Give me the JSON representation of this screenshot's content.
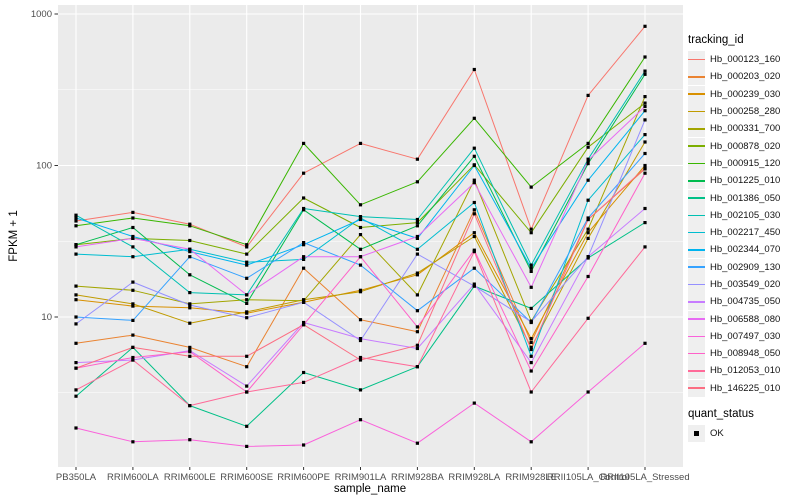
{
  "colors": {
    "background": "#FFFFFF",
    "panel_bg": "#EBEBEB",
    "grid": "#FFFFFF",
    "tick_text": "#4D4D4D",
    "tick_mark": "#333333",
    "axis_title": "#000000",
    "legend_key_bg": "#EFEFEF",
    "point": "#000000"
  },
  "chart_data": {
    "type": "line",
    "title": "",
    "xlabel": "sample_name",
    "ylabel": "FPKM + 1",
    "y_scale": "log10",
    "ylim": [
      1,
      1000
    ],
    "grid": true,
    "legend_position": "right",
    "y_ticks": [
      {
        "value": 10,
        "label": "10"
      },
      {
        "value": 100,
        "label": "100"
      },
      {
        "value": 1000,
        "label": "1000"
      }
    ],
    "y_minor_ticks": [
      3.1623,
      31.623,
      316.23
    ],
    "categories": [
      "PB350LA",
      "RRIM600LA",
      "RRIM600LE",
      "RRIM600SE",
      "RRIM600PE",
      "RRIM901LA",
      "RRIM928BA",
      "RRIM928LA",
      "RRIM928LE",
      "RRII105LA_Control",
      "RRII105LA_Stressed"
    ],
    "point_marker": {
      "shape": "square",
      "color": "#000000"
    },
    "legend": {
      "color_title": "tracking_id",
      "shape_title": "quant_status",
      "shape_items": [
        "OK"
      ]
    },
    "series": [
      {
        "name": "Hb_000123_160",
        "color": "#F8766D",
        "values": [
          43,
          49,
          41,
          29,
          89,
          140,
          110,
          430,
          38,
          290,
          830
        ]
      },
      {
        "name": "Hb_000203_020",
        "color": "#EA8331",
        "values": [
          6.7,
          7.6,
          6.3,
          4.7,
          21,
          9.6,
          8.0,
          51,
          6.8,
          44,
          95
        ]
      },
      {
        "name": "Hb_000239_030",
        "color": "#D89000",
        "values": [
          13,
          11.8,
          11.5,
          10.6,
          12.5,
          15,
          19,
          36,
          7.2,
          36,
          100
        ]
      },
      {
        "name": "Hb_000258_280",
        "color": "#C09B00",
        "values": [
          14,
          12.2,
          9.1,
          10.8,
          13,
          14.7,
          19.5,
          34,
          6.3,
          33,
          143
        ]
      },
      {
        "name": "Hb_000331_700",
        "color": "#A3A500",
        "values": [
          16,
          15,
          12.2,
          13,
          12.8,
          35,
          14,
          80,
          9.4,
          38,
          285
        ]
      },
      {
        "name": "Hb_000878_020",
        "color": "#7CAE00",
        "values": [
          30,
          33,
          32,
          26,
          61,
          39,
          42,
          101,
          36,
          132,
          258
        ]
      },
      {
        "name": "Hb_000915_120",
        "color": "#39B600",
        "values": [
          40,
          45,
          40,
          30,
          140,
          55,
          78,
          205,
          72,
          140,
          520
        ]
      },
      {
        "name": "Hb_001225_010",
        "color": "#00BB4E",
        "values": [
          30,
          39,
          19,
          12.3,
          51,
          28,
          40,
          115,
          20,
          103,
          400
        ]
      },
      {
        "name": "Hb_001386_050",
        "color": "#00C087",
        "values": [
          3.0,
          6.3,
          2.6,
          1.9,
          4.3,
          3.3,
          4.7,
          16,
          11.4,
          24.5,
          42
        ]
      },
      {
        "name": "Hb_002105_030",
        "color": "#00C0B2",
        "values": [
          47,
          29,
          14.5,
          14,
          52,
          46,
          44,
          130,
          22,
          110,
          420
        ]
      },
      {
        "name": "Hb_002217_450",
        "color": "#00BDD0",
        "values": [
          26,
          25,
          28,
          23,
          24,
          45,
          28,
          57,
          5.5,
          59,
          160
        ]
      },
      {
        "name": "Hb_002344_070",
        "color": "#00B4EF",
        "values": [
          45,
          34,
          27,
          22,
          30,
          44,
          33,
          100,
          21,
          80,
          230
        ]
      },
      {
        "name": "Hb_002909_130",
        "color": "#35A2FF",
        "values": [
          10,
          9.5,
          25,
          18,
          31,
          22,
          11,
          21,
          9.2,
          45,
          120
        ]
      },
      {
        "name": "Hb_003549_020",
        "color": "#9590FF",
        "values": [
          9.0,
          17,
          12,
          9.9,
          12.5,
          7.0,
          26,
          16,
          9.3,
          25,
          200
        ]
      },
      {
        "name": "Hb_004735_050",
        "color": "#C77CFF",
        "values": [
          5.0,
          5.2,
          6.0,
          3.5,
          9.2,
          7.2,
          6.2,
          16.5,
          5.0,
          25,
          52
        ]
      },
      {
        "name": "Hb_006588_080",
        "color": "#E76BF3",
        "values": [
          29,
          33,
          28,
          14,
          25,
          25,
          34,
          77,
          15.7,
          108,
          245
        ]
      },
      {
        "name": "Hb_007497_030",
        "color": "#FA62DB",
        "values": [
          1.85,
          1.5,
          1.55,
          1.4,
          1.43,
          2.1,
          1.47,
          2.7,
          1.5,
          3.2,
          6.7
        ]
      },
      {
        "name": "Hb_008948_050",
        "color": "#FF61C9",
        "values": [
          4.6,
          5.4,
          5.9,
          3.2,
          8.9,
          25,
          8.6,
          27.6,
          4.4,
          18.5,
          89
        ]
      },
      {
        "name": "Hb_012053_010",
        "color": "#FF6A99",
        "values": [
          3.3,
          5.2,
          2.6,
          3.2,
          3.7,
          5.4,
          4.7,
          27,
          3.2,
          9.8,
          29
        ]
      },
      {
        "name": "Hb_146225_010",
        "color": "#FC6E83",
        "values": [
          4.6,
          6.3,
          5.5,
          5.5,
          8.9,
          5.2,
          6.5,
          48,
          6.1,
          44,
          96
        ]
      }
    ]
  }
}
